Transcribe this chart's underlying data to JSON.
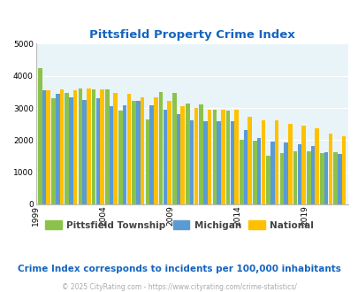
{
  "title": "Pittsfield Property Crime Index",
  "years": [
    1999,
    2000,
    2001,
    2002,
    2003,
    2004,
    2005,
    2006,
    2007,
    2008,
    2009,
    2010,
    2011,
    2012,
    2013,
    2014,
    2015,
    2016,
    2017,
    2018,
    2019,
    2020,
    2021
  ],
  "pittsfield": [
    4250,
    3310,
    3470,
    3600,
    3590,
    3590,
    2910,
    3210,
    2640,
    3500,
    3460,
    3130,
    3120,
    2940,
    2930,
    2010,
    1990,
    1520,
    1610,
    1650,
    1640,
    1610,
    1620
  ],
  "michigan": [
    3560,
    3450,
    3330,
    3260,
    3310,
    3050,
    3090,
    3210,
    3080,
    2950,
    2820,
    2620,
    2580,
    2580,
    2600,
    2320,
    2070,
    1960,
    1930,
    1870,
    1820,
    1620,
    1570
  ],
  "national": [
    3560,
    3580,
    3540,
    3610,
    3580,
    3480,
    3440,
    3340,
    3330,
    3230,
    3060,
    2990,
    2940,
    2940,
    2960,
    2730,
    2620,
    2620,
    2500,
    2460,
    2360,
    2200,
    2110
  ],
  "pittsfield_color": "#8bc34a",
  "michigan_color": "#5b9bd5",
  "national_color": "#ffc000",
  "title_color": "#1565c0",
  "plot_bg": "#e8f4f8",
  "ylim": [
    0,
    5000
  ],
  "yticks": [
    0,
    1000,
    2000,
    3000,
    4000,
    5000
  ],
  "footnote": "Crime Index corresponds to incidents per 100,000 inhabitants",
  "copyright": "© 2025 CityRating.com - https://www.cityrating.com/crime-statistics/",
  "legend_labels": [
    "Pittsfield Township",
    "Michigan",
    "National"
  ],
  "labeled_years": [
    1999,
    2004,
    2009,
    2014,
    2019
  ]
}
